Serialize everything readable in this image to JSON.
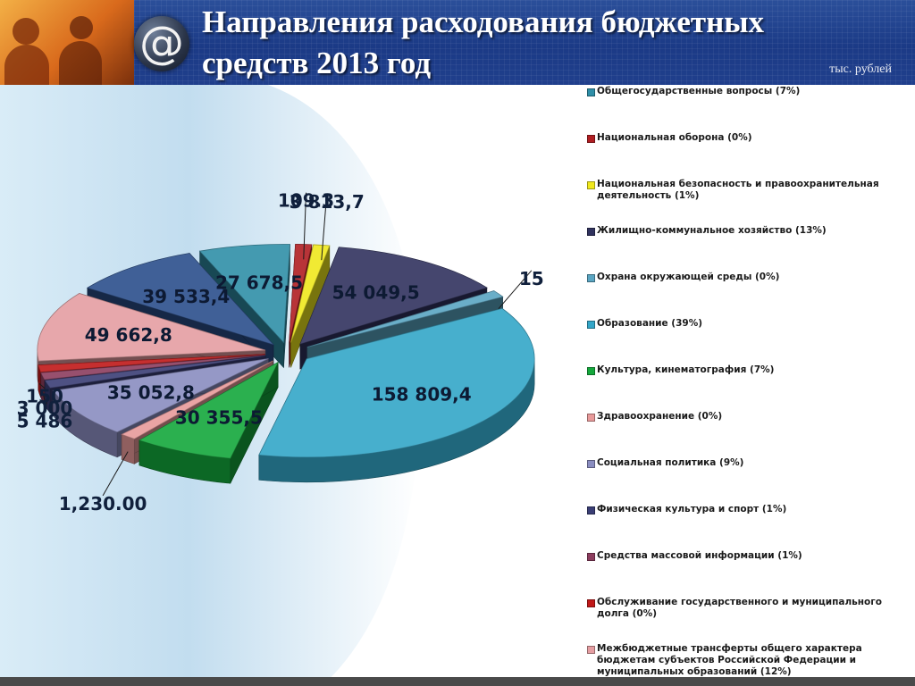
{
  "slide": {
    "title_line1": "Направления расходования бюджетных",
    "title_line2": "средств 2013 год",
    "unit": "тыс. рублей",
    "logo_symbol": "@"
  },
  "colors": {
    "header_bg": "#1e3d8a",
    "plot_bg": "#cfe3f2"
  },
  "chart_data": {
    "type": "pie",
    "style": "3d-exploded",
    "title": "Направления расходования бюджетных средств 2013 год",
    "unit": "тыс. рублей",
    "legend_position": "right",
    "slices": [
      {
        "legend": "Общегосударственные вопросы (7%)",
        "label": "27 678,5",
        "value": 27678.5,
        "color": "#2f8fa8"
      },
      {
        "legend": "Национальная оборона (0%)",
        "label": "109.3",
        "value": 109.3,
        "color": "#b01e22"
      },
      {
        "legend": "Национальная безопасность и правоохранительная деятельность (1%)",
        "label": "3 813,7",
        "value": 3813.7,
        "color": "#f0e81c"
      },
      {
        "legend": "Жилищно-коммунальное хозяйство (13%)",
        "label": "54 049,5",
        "value": 54049.5,
        "color": "#30325e"
      },
      {
        "legend": "Охрана окружающей среды (0%)",
        "label": "15",
        "value": 15,
        "color": "#5aa5c2"
      },
      {
        "legend": "Образование (39%)",
        "label": "158 809,4",
        "value": 158809.4,
        "color": "#33a6c8"
      },
      {
        "legend": "Культура, кинематография (7%)",
        "label": "30 355,5",
        "value": 30355.5,
        "color": "#14a83c"
      },
      {
        "legend": "Здравоохранение (0%)",
        "label": "1,230.00",
        "value": 1230,
        "color": "#e89a9a"
      },
      {
        "legend": "Социальная политика (9%)",
        "label": "35 052,8",
        "value": 35052.8,
        "color": "#8a8dc0"
      },
      {
        "legend": "Физическая культура и спорт (1%)",
        "label": "5 486",
        "value": 5486,
        "color": "#3a3e75"
      },
      {
        "legend": "Средства массовой информации (1%)",
        "label": "3 000",
        "value": 3000,
        "color": "#8c3d5e"
      },
      {
        "legend": "Обслуживание государственного и муниципального долга (0%)",
        "label": "150",
        "value": 150,
        "color": "#c01818"
      },
      {
        "legend": "Межбюджетные трансферты общего характера бюджетам субъектов Российской Федерации и муниципальных образований (12%)",
        "label": "49 662,8",
        "value": 49662.8,
        "color": "#e59ea2"
      },
      {
        "legend": "",
        "label": "39 533,4",
        "value": 39533.4,
        "color": "#2b4f8c"
      }
    ]
  }
}
